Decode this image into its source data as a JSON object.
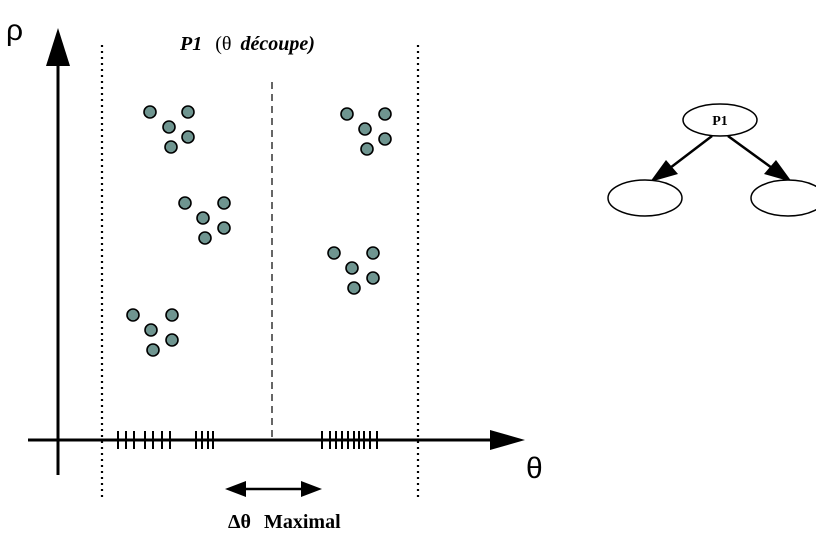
{
  "diagram": {
    "y_axis_label": "ρ",
    "x_axis_label": "θ",
    "partition_title": {
      "name": "P1",
      "open": "(",
      "symbol": "θ",
      "word": "découpe",
      "close": ")"
    },
    "delta_label": {
      "symbol": "Δθ",
      "word": "Maximal"
    },
    "tree": {
      "root_label": "P1",
      "child_count": 2
    },
    "point_color": "#6f9590",
    "clusters_left_count": 3,
    "clusters_right_count": 2
  }
}
